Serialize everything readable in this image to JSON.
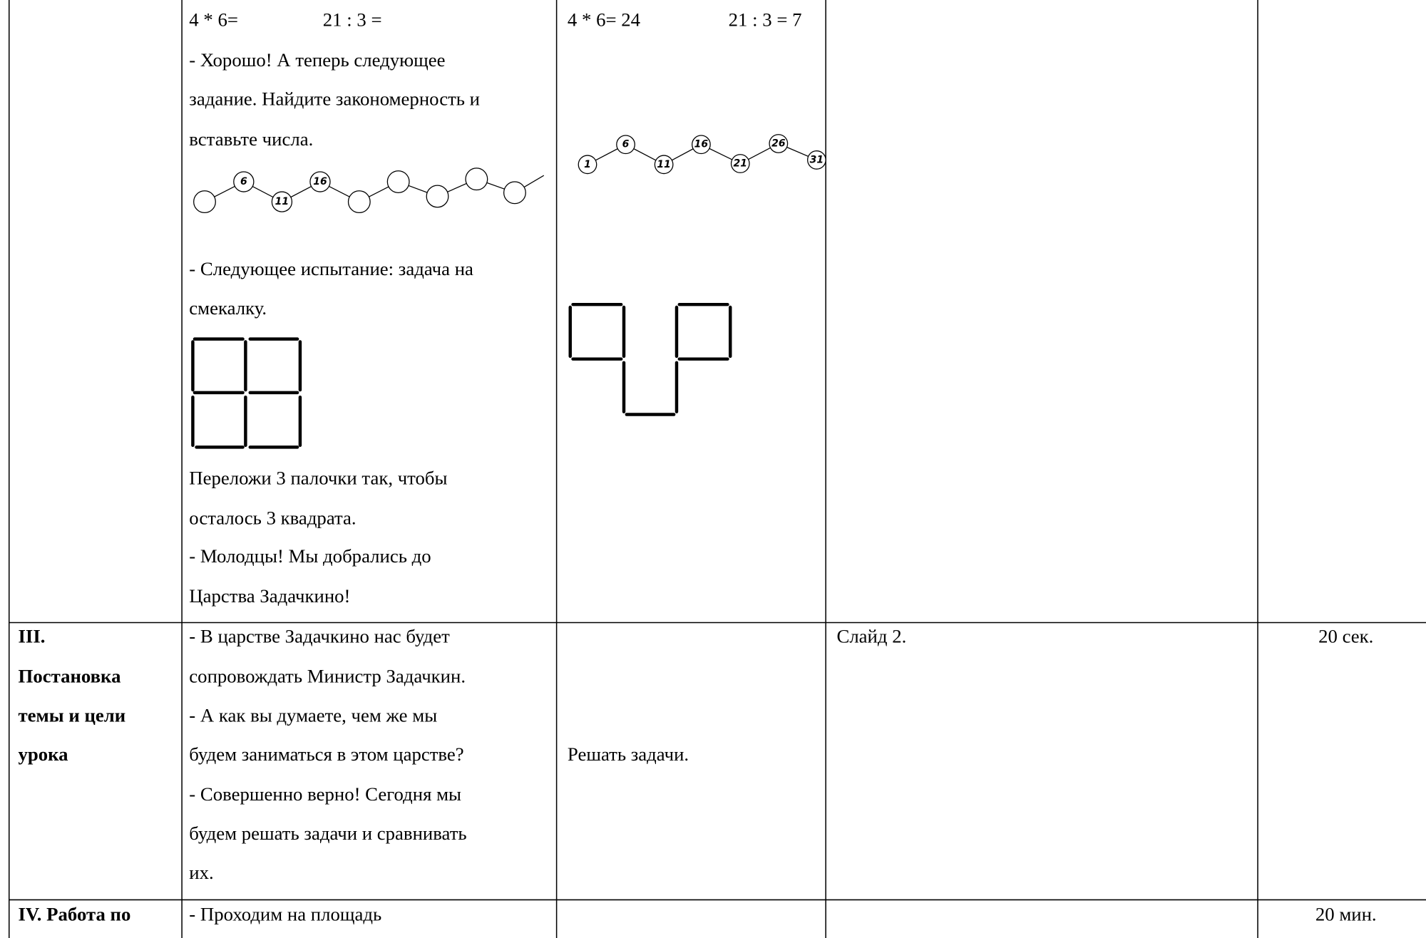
{
  "table": {
    "rows": [
      {
        "activity_top": [
          "4 * 6=",
          "21 : 3 ="
        ],
        "activity": [
          "- Хорошо! А теперь следующее",
          "задание. Найдите закономерность и",
          "вставьте числа.",
          "- Следующее испытание: задача на",
          "смекалку.",
          "Переложи 3 палочки так, чтобы",
          "осталось 3 квадрата.",
          "- Молодцы! Мы добрались до",
          "Царства Задачкино!"
        ],
        "chain_labels": [
          "6",
          "11",
          "16"
        ],
        "answers": [
          "4 * 6= 24",
          "21 : 3 = 7"
        ],
        "answer_chain_labels": [
          "1",
          "6",
          "11",
          "16",
          "21",
          "26",
          "31"
        ]
      },
      {
        "stage": [
          "III.",
          "Постановка",
          "темы и цели",
          "урока"
        ],
        "activity": [
          "- В царстве Задачкино нас будет",
          "сопровождать Министр Задачкин.",
          "- А как вы думаете, чем же мы",
          "будем заниматься в этом царстве?",
          "- Совершенно верно! Сегодня мы",
          "будем решать задачи и сравнивать",
          "их."
        ],
        "student": "Решать задачи.",
        "resources": "Слайд 2.",
        "time": "20 сек."
      },
      {
        "stage": [
          "IV. Работа по"
        ],
        "activity": [
          "- Проходим на площадь"
        ],
        "time": "20 мин."
      }
    ]
  }
}
